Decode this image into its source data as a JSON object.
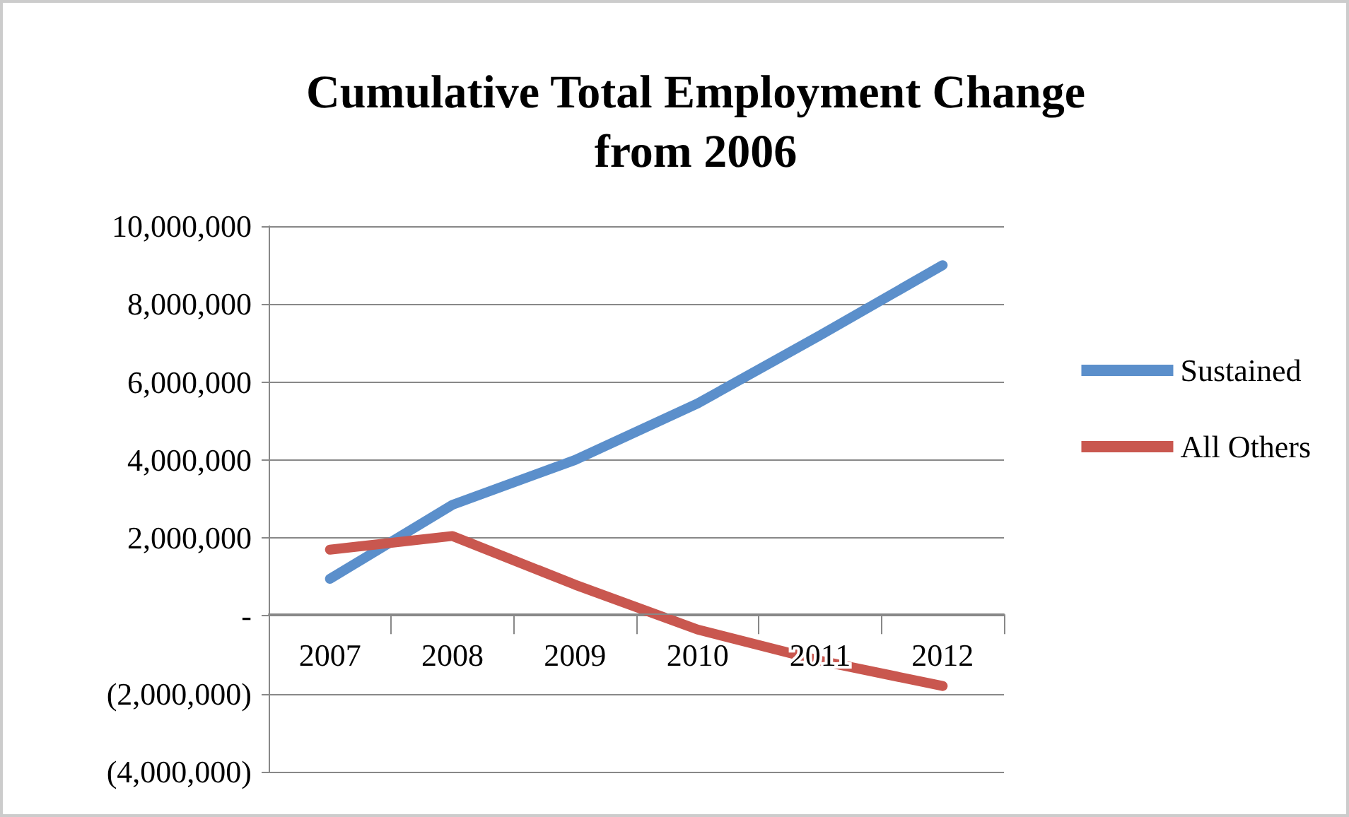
{
  "chart_data": {
    "type": "line",
    "title": "Cumulative Total Employment Change\nfrom 2006",
    "categories": [
      "2007",
      "2008",
      "2009",
      "2010",
      "2011",
      "2012"
    ],
    "series": [
      {
        "name": "Sustained",
        "color": "#5b8fcb",
        "values": [
          950000,
          2850000,
          4000000,
          5450000,
          7200000,
          9000000
        ]
      },
      {
        "name": "All Others",
        "color": "#c9574f",
        "values": [
          1700000,
          2050000,
          800000,
          -350000,
          -1150000,
          -1800000
        ]
      }
    ],
    "ylim": [
      -4000000,
      10000000
    ],
    "yticks": [
      {
        "value": -4000000,
        "label": "(4,000,000)"
      },
      {
        "value": -2000000,
        "label": "(2,000,000)"
      },
      {
        "value": 0,
        "label": "-"
      },
      {
        "value": 2000000,
        "label": "2,000,000"
      },
      {
        "value": 4000000,
        "label": "4,000,000"
      },
      {
        "value": 6000000,
        "label": "6,000,000"
      },
      {
        "value": 8000000,
        "label": "8,000,000"
      },
      {
        "value": 10000000,
        "label": "10,000,000"
      }
    ],
    "grid": "y",
    "legend": "right",
    "line_style": "solid"
  }
}
